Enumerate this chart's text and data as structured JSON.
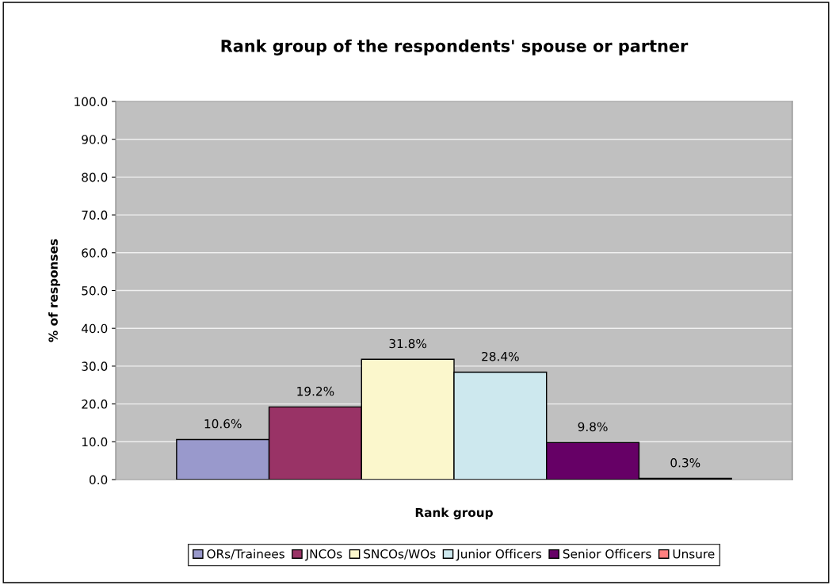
{
  "chart_data": {
    "type": "bar",
    "title": "Rank group of the respondents' spouse or partner",
    "xlabel": "Rank group",
    "ylabel": "% of responses",
    "categories": [
      null
    ],
    "series": [
      {
        "name": "ORs/Trainees",
        "color": "#9999cc",
        "values": [
          10.6
        ],
        "value_labels": [
          "10.6%"
        ]
      },
      {
        "name": "JNCOs",
        "color": "#993366",
        "values": [
          19.2
        ],
        "value_labels": [
          "19.2%"
        ]
      },
      {
        "name": "SNCOs/WOs",
        "color": "#fbf7cc",
        "values": [
          31.8
        ],
        "value_labels": [
          "31.8%"
        ]
      },
      {
        "name": "Junior Officers",
        "color": "#cde8ee",
        "values": [
          28.4
        ],
        "value_labels": [
          "28.4%"
        ]
      },
      {
        "name": "Senior Officers",
        "color": "#660066",
        "values": [
          9.8
        ],
        "value_labels": [
          "9.8%"
        ]
      },
      {
        "name": "Unsure",
        "color": "#ff8080",
        "values": [
          0.3
        ],
        "value_labels": [
          "0.3%"
        ]
      }
    ],
    "ylim": [
      0,
      100
    ],
    "yticks": [
      {
        "value": 0,
        "label": "0.0"
      },
      {
        "value": 10,
        "label": "10.0"
      },
      {
        "value": 20,
        "label": "20.0"
      },
      {
        "value": 30,
        "label": "30.0"
      },
      {
        "value": 40,
        "label": "40.0"
      },
      {
        "value": 50,
        "label": "50.0"
      },
      {
        "value": 60,
        "label": "60.0"
      },
      {
        "value": 70,
        "label": "70.0"
      },
      {
        "value": 80,
        "label": "80.0"
      },
      {
        "value": 90,
        "label": "90.0"
      },
      {
        "value": 100,
        "label": "100.0"
      }
    ],
    "grid": "y",
    "legend": "bottom"
  }
}
